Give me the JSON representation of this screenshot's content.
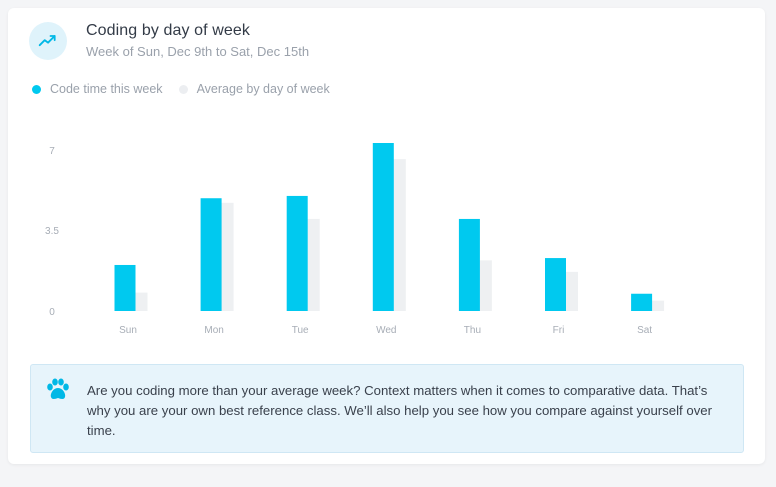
{
  "header": {
    "icon": "trending-up-icon",
    "title": "Coding by day of week",
    "subtitle": "Week of Sun, Dec 9th to Sat, Dec 15th"
  },
  "colors": {
    "accent": "#00c9ef",
    "average": "#eceef1",
    "icon_bg": "#dff3fb",
    "tip_bg": "#e7f4fb"
  },
  "tip": {
    "icon": "paw-icon",
    "text": "Are you coding more than your average week? Context matters when it comes to comparative data. That’s why you are your own best reference class. We’ll also help you see how you compare against yourself over time."
  },
  "chart_data": {
    "type": "bar",
    "title": "Coding by day of week",
    "categories": [
      "Sun",
      "Mon",
      "Tue",
      "Wed",
      "Thu",
      "Fri",
      "Sat"
    ],
    "series": [
      {
        "name": "Code time this week",
        "values": [
          2.0,
          4.9,
          5.0,
          7.3,
          4.0,
          2.3,
          0.75
        ]
      },
      {
        "name": "Average by day of week",
        "values": [
          0.8,
          4.7,
          4.0,
          6.6,
          2.2,
          1.7,
          0.45
        ]
      }
    ],
    "ytick_labels": [
      "7",
      "3.5",
      "0"
    ],
    "ylim": [
      0,
      7.3
    ],
    "legend": "top-left",
    "grid": false
  }
}
